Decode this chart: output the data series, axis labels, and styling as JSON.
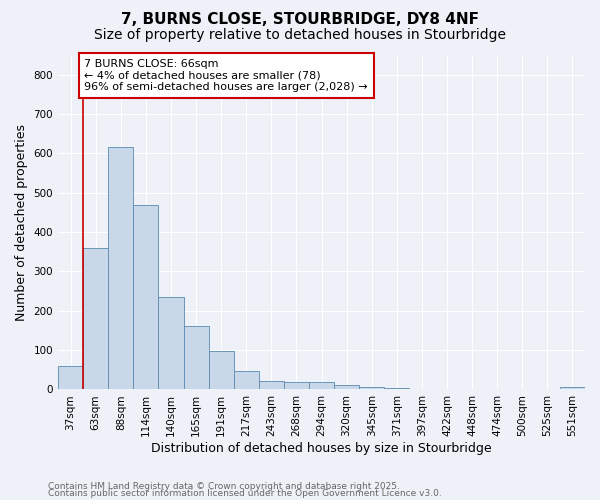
{
  "title1": "7, BURNS CLOSE, STOURBRIDGE, DY8 4NF",
  "title2": "Size of property relative to detached houses in Stourbridge",
  "xlabel": "Distribution of detached houses by size in Stourbridge",
  "ylabel": "Number of detached properties",
  "categories": [
    "37sqm",
    "63sqm",
    "88sqm",
    "114sqm",
    "140sqm",
    "165sqm",
    "191sqm",
    "217sqm",
    "243sqm",
    "268sqm",
    "294sqm",
    "320sqm",
    "345sqm",
    "371sqm",
    "397sqm",
    "422sqm",
    "448sqm",
    "474sqm",
    "500sqm",
    "525sqm",
    "551sqm"
  ],
  "values": [
    60,
    360,
    615,
    470,
    235,
    162,
    98,
    48,
    22,
    20,
    18,
    12,
    5,
    3,
    2,
    1,
    1,
    1,
    1,
    1,
    5
  ],
  "bar_color": "#c8d8e8",
  "bar_edge_color": "#5a8ab0",
  "vline_color": "#cc0000",
  "annotation_text": "7 BURNS CLOSE: 66sqm\n← 4% of detached houses are smaller (78)\n96% of semi-detached houses are larger (2,028) →",
  "annotation_box_color": "#ffffff",
  "annotation_box_edge": "#cc0000",
  "ylim": [
    0,
    850
  ],
  "yticks": [
    0,
    100,
    200,
    300,
    400,
    500,
    600,
    700,
    800
  ],
  "footer1": "Contains HM Land Registry data © Crown copyright and database right 2025.",
  "footer2": "Contains public sector information licensed under the Open Government Licence v3.0.",
  "bg_color": "#eef2f8",
  "plot_bg_color": "#eef2f8",
  "grid_color": "#ffffff",
  "title1_fontsize": 11,
  "title2_fontsize": 10,
  "xlabel_fontsize": 9,
  "ylabel_fontsize": 9,
  "tick_fontsize": 7.5,
  "footer_fontsize": 6.5,
  "annot_fontsize": 8
}
